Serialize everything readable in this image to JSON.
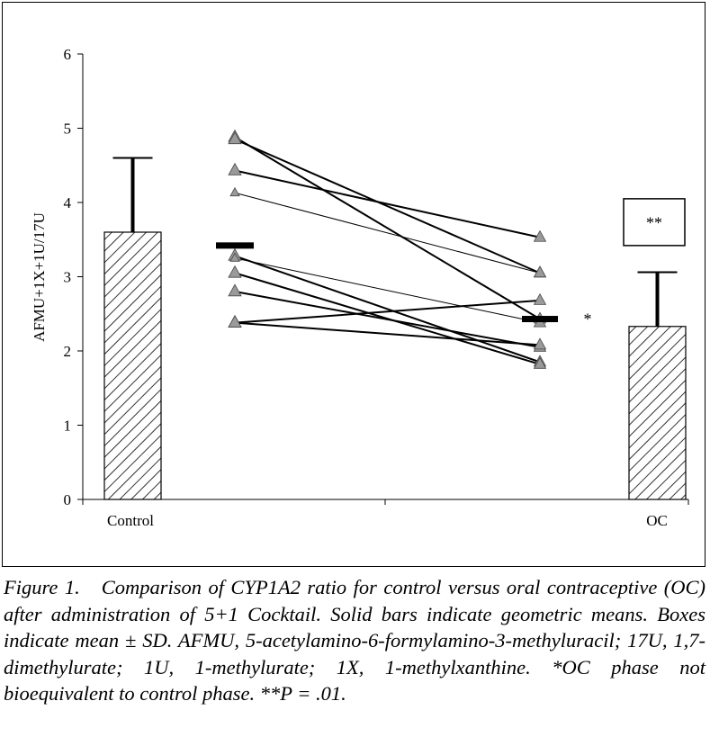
{
  "caption": {
    "label": "Figure 1.",
    "text": "Comparison of CYP1A2 ratio for control versus oral contraceptive (OC) after administration of 5+1 Cocktail. Solid bars indicate geometric means. Boxes indicate mean ± SD. AFMU, 5-acetylamino-6-formylamino-3-methyluracil; 17U, 1,7-dimethylurate; 1U, 1-methylurate; 1X, 1-methylxanthine. *OC phase not bioequivalent to control phase. **P = .01."
  },
  "chart_data": {
    "type": "bar",
    "ylabel": "AFMU+1X+1U/17U",
    "ylim": [
      0,
      6
    ],
    "yticks": [
      "0",
      "1",
      "2",
      "3",
      "4",
      "5",
      "6"
    ],
    "categories": [
      "Control",
      "OC"
    ],
    "bars": [
      {
        "category": "Control",
        "mean": 3.6,
        "sd": 1.0
      },
      {
        "category": "OC",
        "mean": 2.33,
        "sd": 0.73
      }
    ],
    "geometric_means": {
      "control": 3.42,
      "oc": 2.43
    },
    "paired_subjects": [
      {
        "control": 4.88,
        "oc": 2.43
      },
      {
        "control": 4.85,
        "oc": 3.05
      },
      {
        "control": 4.43,
        "oc": 3.53
      },
      {
        "control": 4.13,
        "oc": 3.05
      },
      {
        "control": 3.28,
        "oc": 1.85
      },
      {
        "control": 3.25,
        "oc": 2.38
      },
      {
        "control": 3.05,
        "oc": 1.82
      },
      {
        "control": 2.8,
        "oc": 2.05
      },
      {
        "control": 2.38,
        "oc": 2.68
      },
      {
        "control": 2.38,
        "oc": 2.08
      }
    ],
    "annotations": {
      "star": "*",
      "double_star": "**"
    },
    "grid": false,
    "legend": "none"
  }
}
